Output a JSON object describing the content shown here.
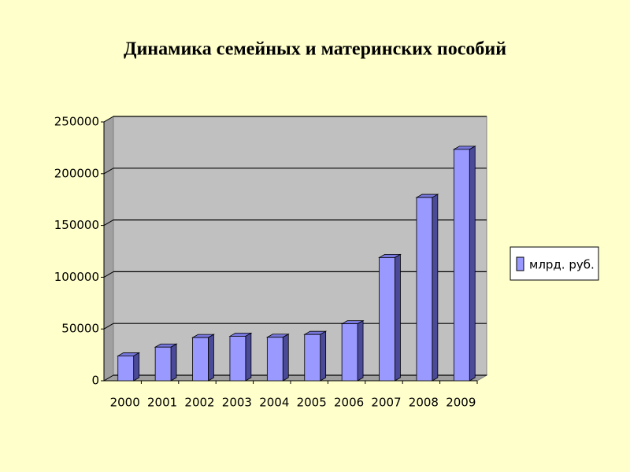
{
  "chart_data": {
    "type": "bar",
    "title": "Динамика семейных и материнских пособий",
    "categories": [
      "2000",
      "2001",
      "2002",
      "2003",
      "2004",
      "2005",
      "2006",
      "2007",
      "2008",
      "2009"
    ],
    "series": [
      {
        "name": "млрд. руб.",
        "color": "#9999ff",
        "values": [
          24000,
          32500,
          41700,
          43000,
          42000,
          44700,
          55000,
          119000,
          177000,
          223500
        ]
      }
    ],
    "ylim": [
      0,
      250000
    ],
    "yticks": [
      0,
      50000,
      100000,
      150000,
      200000,
      250000
    ],
    "grid": true,
    "legend": "right"
  }
}
